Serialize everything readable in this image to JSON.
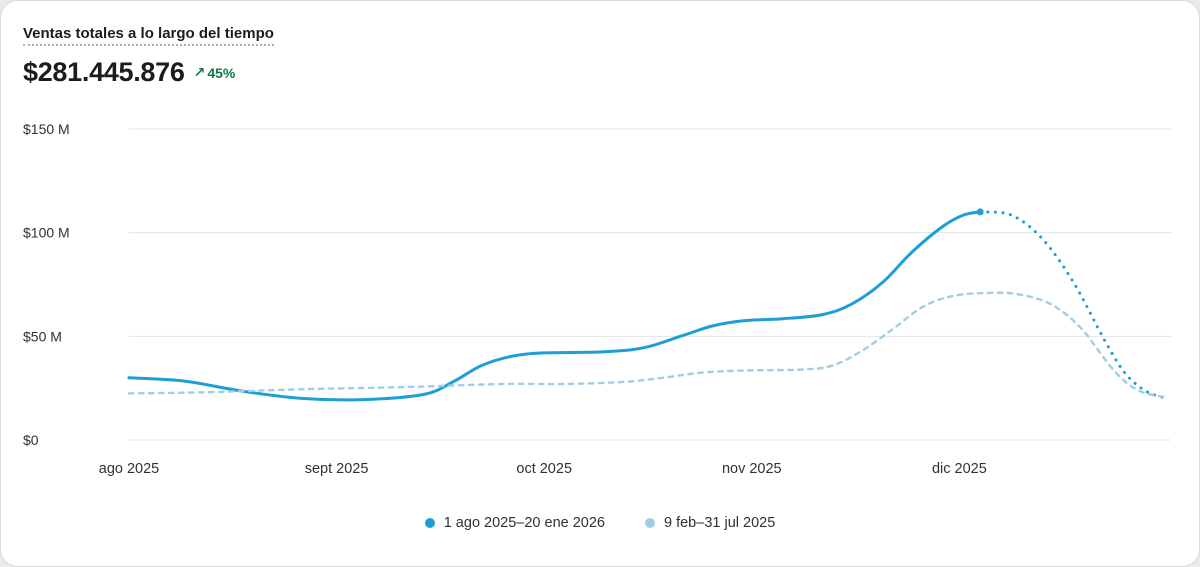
{
  "card": {
    "title": "Ventas totales a lo largo del tiempo",
    "total_value": "$281.445.876",
    "delta": {
      "arrow": "↗",
      "label": "45%",
      "color": "#087a44"
    }
  },
  "chart_data": {
    "type": "line",
    "title": "Ventas totales a lo largo del tiempo",
    "xlabel": "",
    "ylabel": "",
    "grid": true,
    "legend_position": "bottom",
    "xlim": [
      0,
      5
    ],
    "ylim": [
      0,
      150
    ],
    "y_ticks": [
      {
        "label": "$150 M",
        "value": 150
      },
      {
        "label": "$100 M",
        "value": 100
      },
      {
        "label": "$50 M",
        "value": 50
      },
      {
        "label": "$0",
        "value": 0
      }
    ],
    "x_ticks": [
      {
        "label": "ago 2025",
        "value": 0
      },
      {
        "label": "sept 2025",
        "value": 1
      },
      {
        "label": "oct 2025",
        "value": 2
      },
      {
        "label": "nov 2025",
        "value": 3
      },
      {
        "label": "dic 2025",
        "value": 4
      }
    ],
    "grid_color": "#e4e5e7",
    "series": [
      {
        "name": "1 ago 2025–20 ene 2026",
        "color": "#1e9ed6",
        "width": 3,
        "end_marker": [
          4.1,
          110
        ],
        "segments": [
          {
            "style": "solid",
            "points": [
              [
                0,
                30
              ],
              [
                0.26,
                28.5
              ],
              [
                0.55,
                23.5
              ],
              [
                0.84,
                20
              ],
              [
                1.13,
                19.5
              ],
              [
                1.42,
                22
              ],
              [
                1.56,
                28
              ],
              [
                1.7,
                36
              ],
              [
                1.85,
                40.5
              ],
              [
                2.0,
                42
              ],
              [
                2.28,
                42.5
              ],
              [
                2.48,
                44.5
              ],
              [
                2.67,
                50.5
              ],
              [
                2.81,
                55
              ],
              [
                2.96,
                57.5
              ],
              [
                3.15,
                58.5
              ],
              [
                3.34,
                60.5
              ],
              [
                3.48,
                65.5
              ],
              [
                3.63,
                76
              ],
              [
                3.77,
                90.5
              ],
              [
                3.92,
                103
              ],
              [
                4.02,
                108.5
              ],
              [
                4.1,
                110
              ]
            ]
          },
          {
            "style": "dotted",
            "points": [
              [
                4.1,
                110
              ],
              [
                4.25,
                108.5
              ],
              [
                4.4,
                97
              ],
              [
                4.55,
                76
              ],
              [
                4.7,
                48
              ],
              [
                4.8,
                32
              ],
              [
                4.9,
                23.5
              ],
              [
                5.0,
                20
              ]
            ]
          }
        ]
      },
      {
        "name": "9 feb–31 jul 2025",
        "color": "#a2cde2",
        "width": 2.4,
        "segments": [
          {
            "style": "dashed",
            "points": [
              [
                0,
                22.5
              ],
              [
                0.36,
                23
              ],
              [
                0.84,
                24.5
              ],
              [
                1.32,
                25.5
              ],
              [
                1.8,
                27
              ],
              [
                2.09,
                27
              ],
              [
                2.38,
                28
              ],
              [
                2.57,
                30
              ],
              [
                2.76,
                32.5
              ],
              [
                2.96,
                33.5
              ],
              [
                3.25,
                34
              ],
              [
                3.39,
                36
              ],
              [
                3.53,
                43
              ],
              [
                3.68,
                53.5
              ],
              [
                3.82,
                64
              ],
              [
                3.97,
                69.5
              ],
              [
                4.16,
                71
              ],
              [
                4.3,
                70
              ],
              [
                4.45,
                65
              ],
              [
                4.59,
                53.5
              ],
              [
                4.74,
                34
              ],
              [
                4.86,
                24
              ],
              [
                5.0,
                20.5
              ]
            ]
          }
        ]
      }
    ]
  }
}
